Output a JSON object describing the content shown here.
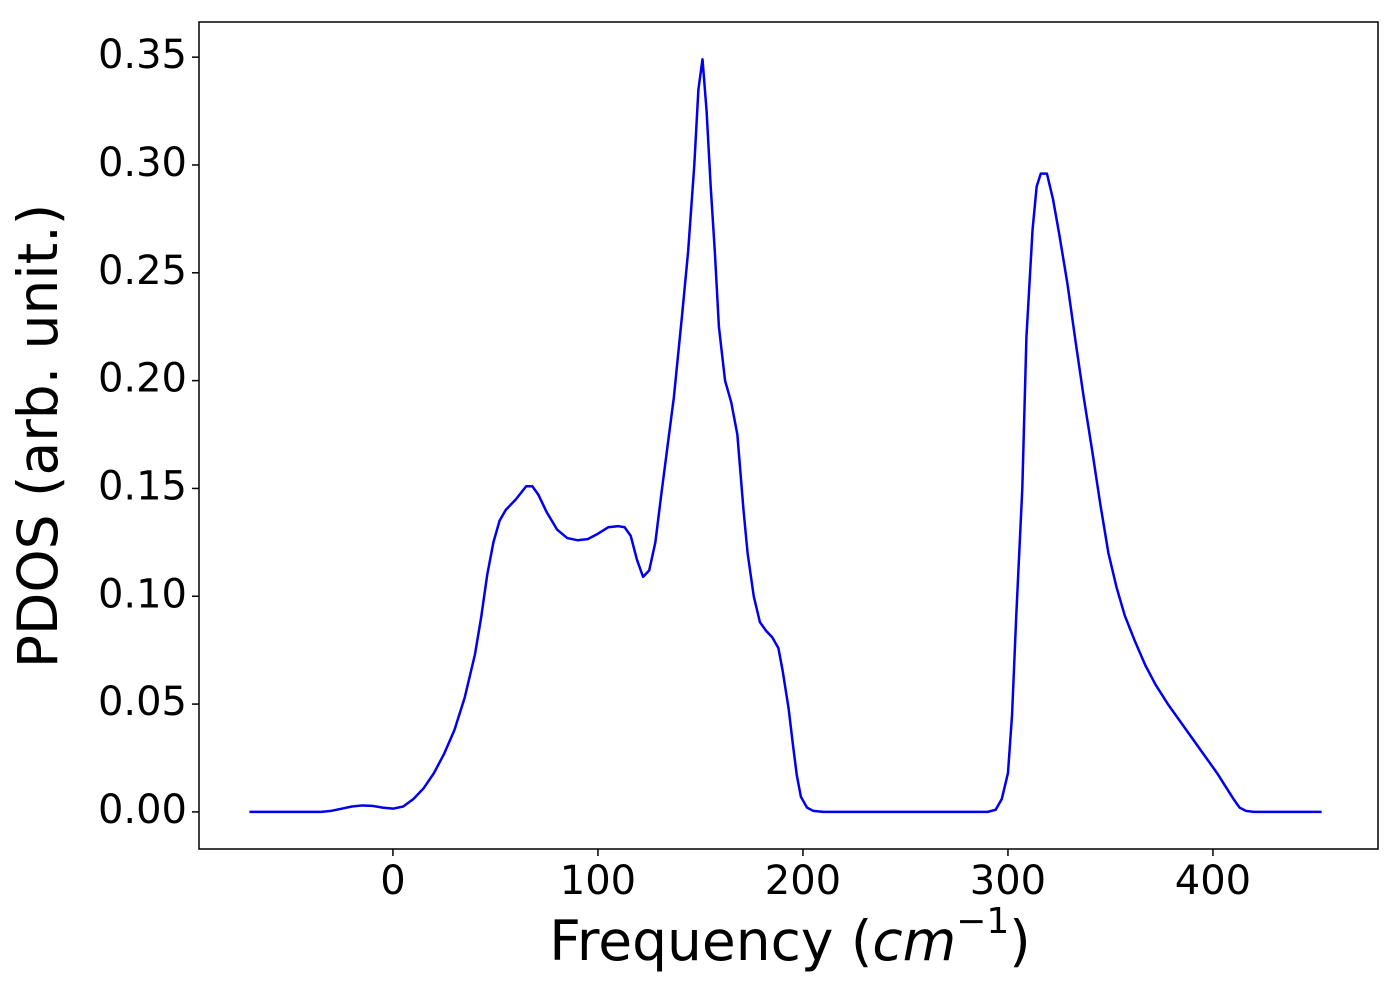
{
  "chart_data": {
    "type": "line",
    "xlabel": [
      "Frequency (",
      "cm",
      "−1",
      ")"
    ],
    "ylabel": "PDOS (arb. unit.)",
    "x": [
      -70,
      -35,
      -30,
      -25,
      -20,
      -15,
      -10,
      -5,
      0,
      5,
      10,
      15,
      20,
      25,
      30,
      35,
      40,
      43,
      46,
      49,
      52,
      55,
      60,
      65,
      68,
      71,
      75,
      80,
      85,
      90,
      95,
      100,
      105,
      110,
      113,
      116,
      119,
      122,
      125,
      128,
      131,
      134,
      137,
      141,
      144,
      147,
      149,
      151,
      153,
      155,
      157,
      159,
      162,
      165,
      168,
      171,
      173,
      176,
      179,
      182,
      185,
      188,
      190,
      193,
      195,
      197,
      199,
      202,
      205,
      210,
      290,
      294,
      297,
      300,
      302,
      304,
      307,
      309,
      312,
      314,
      316,
      319,
      322,
      325,
      329,
      333,
      337,
      341,
      345,
      349,
      353,
      357,
      362,
      367,
      372,
      378,
      384,
      390,
      396,
      402,
      406,
      410,
      413,
      416,
      420,
      453
    ],
    "series": [
      {
        "color": "#0000ee",
        "values": [
          0,
          0,
          0.0005,
          0.0015,
          0.0025,
          0.003,
          0.0028,
          0.002,
          0.0015,
          0.0025,
          0.006,
          0.011,
          0.018,
          0.027,
          0.038,
          0.053,
          0.073,
          0.09,
          0.11,
          0.125,
          0.135,
          0.14,
          0.145,
          0.151,
          0.151,
          0.147,
          0.139,
          0.131,
          0.127,
          0.126,
          0.1265,
          0.129,
          0.132,
          0.1325,
          0.132,
          0.128,
          0.117,
          0.109,
          0.112,
          0.125,
          0.148,
          0.17,
          0.192,
          0.23,
          0.26,
          0.3,
          0.335,
          0.349,
          0.325,
          0.29,
          0.26,
          0.225,
          0.2,
          0.19,
          0.175,
          0.14,
          0.12,
          0.1,
          0.088,
          0.084,
          0.081,
          0.076,
          0.066,
          0.048,
          0.032,
          0.017,
          0.007,
          0.002,
          0.0005,
          0,
          0,
          0.001,
          0.006,
          0.018,
          0.045,
          0.09,
          0.15,
          0.22,
          0.27,
          0.29,
          0.296,
          0.296,
          0.284,
          0.268,
          0.245,
          0.218,
          0.192,
          0.168,
          0.143,
          0.12,
          0.104,
          0.091,
          0.079,
          0.068,
          0.059,
          0.05,
          0.042,
          0.034,
          0.026,
          0.018,
          0.012,
          0.006,
          0.002,
          0.0005,
          0,
          0
        ]
      }
    ],
    "xlim": [
      -94.6,
      480.5
    ],
    "ylim": [
      -0.0172,
      0.3663
    ],
    "xticks": [
      0,
      100,
      200,
      300,
      400
    ],
    "yticks": [
      {
        "value": 0,
        "label": "0.00"
      },
      {
        "value": 0.05,
        "label": "0.05"
      },
      {
        "value": 0.1,
        "label": "0.10"
      },
      {
        "value": 0.15,
        "label": "0.15"
      },
      {
        "value": 0.2,
        "label": "0.20"
      },
      {
        "value": 0.25,
        "label": "0.25"
      },
      {
        "value": 0.3,
        "label": "0.30"
      },
      {
        "value": 0.35,
        "label": "0.35"
      }
    ],
    "grid": false
  }
}
